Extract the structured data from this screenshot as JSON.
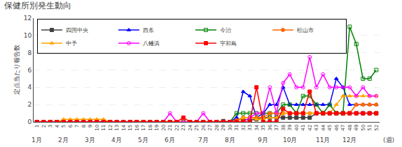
{
  "chart_data": {
    "type": "line",
    "title": "保健所別発生動向",
    "ylabel": "定点当たり報告数",
    "xlabel": "(週)",
    "x": [
      1,
      2,
      3,
      4,
      5,
      6,
      7,
      8,
      9,
      10,
      11,
      12,
      13,
      14,
      15,
      16,
      17,
      18,
      19,
      20,
      21,
      22,
      23,
      24,
      25,
      26,
      27,
      28,
      29,
      30,
      31,
      32,
      33,
      34,
      35,
      36,
      37,
      38,
      39,
      40,
      41,
      42,
      43,
      44,
      45,
      46,
      47,
      48,
      49,
      50,
      51,
      52
    ],
    "xlim": [
      0.5,
      52.5
    ],
    "xticks": [
      1,
      2,
      3,
      4,
      5,
      6,
      7,
      8,
      9,
      10,
      11,
      12,
      13,
      14,
      15,
      16,
      17,
      18,
      19,
      20,
      21,
      22,
      23,
      24,
      25,
      26,
      27,
      28,
      29,
      30,
      31,
      32,
      33,
      34,
      35,
      36,
      37,
      38,
      39,
      40,
      41,
      42,
      43,
      44,
      45,
      46,
      47,
      48,
      49,
      50,
      51,
      52
    ],
    "ylim": [
      0,
      12
    ],
    "yticks": [
      0,
      2,
      4,
      6,
      8,
      10,
      12
    ],
    "grid": true,
    "legend": "upper left",
    "annotations": [
      {
        "text": "1月",
        "x": 1
      },
      {
        "text": "2月",
        "x": 5
      },
      {
        "text": "3月",
        "x": 9
      },
      {
        "text": "4月",
        "x": 13
      },
      {
        "text": "5月",
        "x": 17
      },
      {
        "text": "6月",
        "x": 21
      },
      {
        "text": "7月",
        "x": 26
      },
      {
        "text": "8月",
        "x": 30
      },
      {
        "text": "9月",
        "x": 35
      },
      {
        "text": "10月",
        "x": 39
      },
      {
        "text": "11月",
        "x": 44
      },
      {
        "text": "12月",
        "x": 48
      }
    ],
    "series": [
      {
        "name": "四国中央",
        "color": "#404040",
        "marker": "square",
        "values": [
          0,
          0,
          0,
          0,
          0,
          0,
          0,
          0,
          0,
          0,
          0,
          0,
          0,
          0,
          0,
          0,
          0,
          0,
          0,
          0,
          0,
          0,
          0,
          0,
          0,
          0,
          0,
          0,
          0.1,
          0,
          0.2,
          0.3,
          0.2,
          0.3,
          0.5,
          0.5,
          0.5,
          0.5,
          0.5,
          0.5,
          0.5,
          0.5,
          1,
          1,
          1,
          1,
          1,
          1,
          1,
          1,
          1,
          1
        ]
      },
      {
        "name": "西条",
        "color": "#0000ff",
        "marker": "triangle-up",
        "values": [
          0,
          0,
          0,
          0,
          0,
          0,
          0,
          0,
          0,
          0,
          0,
          0,
          0,
          0,
          0,
          0,
          0,
          0,
          0,
          0,
          0,
          0,
          0,
          0,
          0,
          0,
          0,
          0,
          0,
          0,
          0.5,
          3.5,
          3,
          0.5,
          1,
          2,
          2,
          4,
          2,
          2,
          2,
          2,
          2,
          2,
          2,
          5,
          4,
          2,
          2,
          2,
          2,
          2
        ]
      },
      {
        "name": "今治",
        "color": "#008000",
        "marker": "square-open",
        "values": [
          0,
          0,
          0,
          0,
          0,
          0,
          0,
          0,
          0,
          0,
          0,
          0,
          0,
          0,
          0,
          0,
          0,
          0,
          0,
          0,
          0,
          0,
          0,
          0,
          0,
          0,
          0,
          0,
          0,
          0,
          1,
          1,
          1,
          1,
          1,
          1,
          1,
          2,
          2,
          1,
          3,
          3,
          2,
          1,
          2,
          1,
          1,
          11,
          9,
          5,
          5,
          6
        ]
      },
      {
        "name": "松山市",
        "color": "#ff6600",
        "marker": "circle",
        "values": [
          0,
          0,
          0,
          0,
          0,
          0,
          0,
          0,
          0,
          0,
          0,
          0,
          0,
          0,
          0,
          0,
          0,
          0,
          0,
          0,
          0,
          0,
          0,
          0,
          0,
          0,
          0,
          0,
          0,
          0,
          0.2,
          0.5,
          0.5,
          0.5,
          0.5,
          1,
          1,
          1,
          1,
          1,
          1,
          1,
          1,
          1,
          1,
          1,
          1,
          1,
          2,
          2,
          2,
          2
        ]
      },
      {
        "name": "中予",
        "color": "#ffa500",
        "marker": "triangle-up",
        "values": [
          0,
          0,
          0,
          0,
          0.3,
          0.3,
          0.3,
          0.3,
          0.3,
          0.3,
          0.3,
          0,
          0,
          0,
          0,
          0,
          0,
          0,
          0,
          0,
          0,
          0,
          0,
          0,
          0,
          0,
          0,
          0,
          0,
          0,
          0,
          0.5,
          0.5,
          0.3,
          0.3,
          0.5,
          0.5,
          1,
          1,
          1,
          1,
          1,
          1,
          1,
          1,
          2,
          3,
          3,
          3,
          3,
          3,
          3
        ]
      },
      {
        "name": "八幡浜",
        "color": "#ff00ff",
        "marker": "circle-open",
        "values": [
          0,
          0,
          0,
          0,
          0,
          0,
          0,
          0,
          0,
          0,
          0,
          0,
          0,
          0,
          0,
          0,
          0,
          0,
          0,
          0,
          1,
          0,
          0,
          0,
          0,
          1,
          0,
          0,
          0,
          0,
          0,
          0,
          0.5,
          1,
          1,
          4,
          1,
          4.5,
          5.5,
          4,
          4,
          7.5,
          4,
          5.5,
          4,
          4,
          4,
          4,
          3,
          4,
          3,
          3
        ]
      },
      {
        "name": "宇和島",
        "color": "#ff0000",
        "marker": "square",
        "values": [
          0,
          0,
          0,
          0,
          0,
          0,
          0,
          0,
          0,
          0,
          0,
          0,
          0,
          0,
          0,
          0,
          0,
          0,
          0,
          0,
          0,
          0,
          0.5,
          0,
          0,
          0,
          0,
          0,
          0,
          0,
          0,
          0,
          0,
          4,
          0,
          0,
          0,
          1.5,
          1,
          1,
          1,
          3.5,
          1,
          1,
          1,
          1,
          1,
          1,
          1,
          1,
          1,
          1
        ]
      }
    ]
  }
}
